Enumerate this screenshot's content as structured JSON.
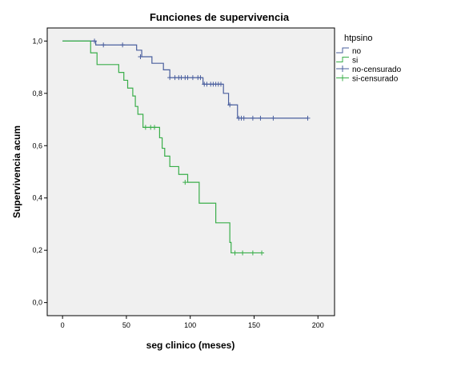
{
  "chart_data": {
    "type": "line",
    "title": "Funciones de supervivencia",
    "xlabel": "seg clinico (meses)",
    "ylabel": "Supervivencia acum",
    "xlim": [
      -12,
      213
    ],
    "ylim": [
      -0.05,
      1.05
    ],
    "xticks": [
      0,
      50,
      100,
      150,
      200
    ],
    "yticks": [
      0.0,
      0.2,
      0.4,
      0.6,
      0.8,
      1.0
    ],
    "ytick_labels": [
      "0,0",
      "0,2",
      "0,4",
      "0,6",
      "0,8",
      "1,0"
    ],
    "grid": false,
    "legend_title": "htpsino",
    "legend_position": "right",
    "legend": [
      {
        "label": "no",
        "kind": "step",
        "color": "#4a5f9e"
      },
      {
        "label": "si",
        "kind": "step",
        "color": "#3aae4a"
      },
      {
        "label": "no-censurado",
        "kind": "censor",
        "color": "#4a5f9e"
      },
      {
        "label": "si-censurado",
        "kind": "censor",
        "color": "#3aae4a"
      }
    ],
    "series": [
      {
        "name": "no",
        "color": "#4a5f9e",
        "steps": [
          [
            0,
            1.0
          ],
          [
            26,
            0.985
          ],
          [
            58,
            0.965
          ],
          [
            62,
            0.94
          ],
          [
            70,
            0.915
          ],
          [
            79,
            0.89
          ],
          [
            84,
            0.86
          ],
          [
            110,
            0.835
          ],
          [
            126,
            0.8
          ],
          [
            130,
            0.756
          ],
          [
            137,
            0.705
          ],
          [
            192,
            0.705
          ]
        ],
        "censored": [
          [
            25,
            1.0
          ],
          [
            32,
            0.985
          ],
          [
            47,
            0.985
          ],
          [
            61,
            0.94
          ],
          [
            84,
            0.86
          ],
          [
            88,
            0.86
          ],
          [
            91,
            0.86
          ],
          [
            93,
            0.86
          ],
          [
            96,
            0.86
          ],
          [
            98,
            0.86
          ],
          [
            102,
            0.86
          ],
          [
            106,
            0.86
          ],
          [
            108,
            0.86
          ],
          [
            111,
            0.835
          ],
          [
            113,
            0.835
          ],
          [
            116,
            0.835
          ],
          [
            118,
            0.835
          ],
          [
            120,
            0.835
          ],
          [
            122,
            0.835
          ],
          [
            124,
            0.835
          ],
          [
            131,
            0.756
          ],
          [
            138,
            0.705
          ],
          [
            140,
            0.705
          ],
          [
            142,
            0.705
          ],
          [
            149,
            0.705
          ],
          [
            155,
            0.705
          ],
          [
            165,
            0.705
          ],
          [
            192,
            0.705
          ]
        ]
      },
      {
        "name": "si",
        "color": "#3aae4a",
        "steps": [
          [
            0,
            1.0
          ],
          [
            22,
            0.955
          ],
          [
            27,
            0.91
          ],
          [
            44,
            0.88
          ],
          [
            48,
            0.85
          ],
          [
            51,
            0.82
          ],
          [
            55,
            0.79
          ],
          [
            57,
            0.75
          ],
          [
            59,
            0.72
          ],
          [
            63,
            0.67
          ],
          [
            76,
            0.63
          ],
          [
            78,
            0.59
          ],
          [
            80,
            0.56
          ],
          [
            84,
            0.52
          ],
          [
            91,
            0.49
          ],
          [
            98,
            0.46
          ],
          [
            107,
            0.38
          ],
          [
            120,
            0.305
          ],
          [
            131,
            0.23
          ],
          [
            132,
            0.19
          ],
          [
            156,
            0.19
          ]
        ],
        "censored": [
          [
            65,
            0.67
          ],
          [
            69,
            0.67
          ],
          [
            72,
            0.67
          ],
          [
            96,
            0.46
          ],
          [
            135,
            0.19
          ],
          [
            141,
            0.19
          ],
          [
            149,
            0.19
          ],
          [
            156,
            0.19
          ]
        ]
      }
    ]
  }
}
